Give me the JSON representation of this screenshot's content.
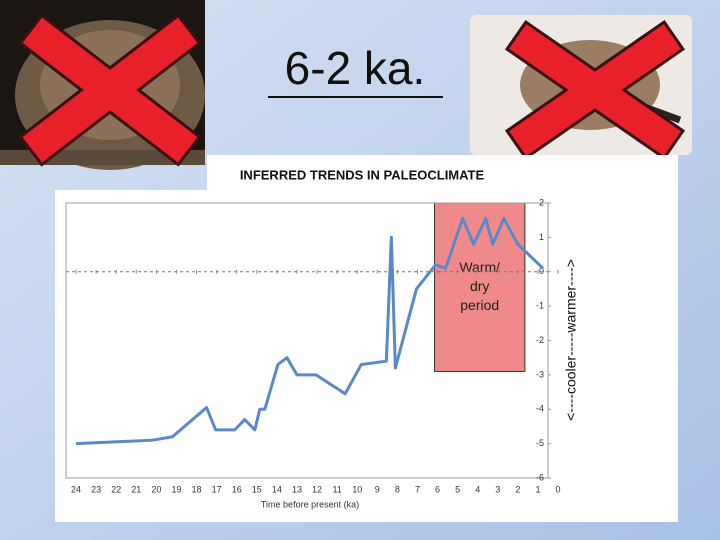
{
  "slide_title": "6-2 ka.",
  "chart_data": {
    "type": "line",
    "title": "INFERRED TRENDS IN PALEOCLIMATE",
    "x_label": "Time before present (ka)",
    "y_label": "<----cooler-----warmer---->",
    "x": [
      24,
      20.2,
      19.2,
      18.2,
      17.5,
      17.05,
      16.1,
      15.6,
      15.1,
      14.85,
      14.6,
      13.95,
      13.5,
      13.0,
      12.05,
      10.6,
      9.8,
      8.55,
      8.3,
      8.1,
      7.05,
      6.1,
      5.6,
      4.75,
      4.2,
      3.6,
      3.25,
      2.7,
      2.0,
      0.75
    ],
    "series": [
      {
        "color": "#5b88c8",
        "values": [
          -5.0,
          -4.9,
          -4.8,
          -4.3,
          -3.95,
          -4.6,
          -4.6,
          -4.3,
          -4.6,
          -4.0,
          -4.0,
          -2.7,
          -2.5,
          -3.0,
          -3.0,
          -3.55,
          -2.7,
          -2.6,
          1.0,
          -2.8,
          -0.5,
          0.2,
          0.1,
          1.55,
          0.8,
          1.55,
          0.8,
          1.55,
          0.8,
          0.1
        ]
      }
    ],
    "xlim": [
      24.5,
      0.5
    ],
    "xticks": [
      24,
      23,
      22,
      21,
      20,
      19,
      18,
      17,
      16,
      15,
      14,
      13,
      12,
      11,
      10,
      9,
      8,
      7,
      6,
      5,
      4,
      3,
      2,
      1,
      0
    ],
    "ylim": [
      -6,
      2
    ],
    "yticks": [
      -6,
      -5,
      -4,
      -3,
      -2,
      -1,
      0,
      1,
      2
    ],
    "annotation": {
      "text": "Warm/ dry period",
      "x": [
        6.15,
        1.65
      ],
      "y": [
        2,
        -2.9
      ],
      "color": "#f08a8a"
    },
    "zero_line": true
  }
}
